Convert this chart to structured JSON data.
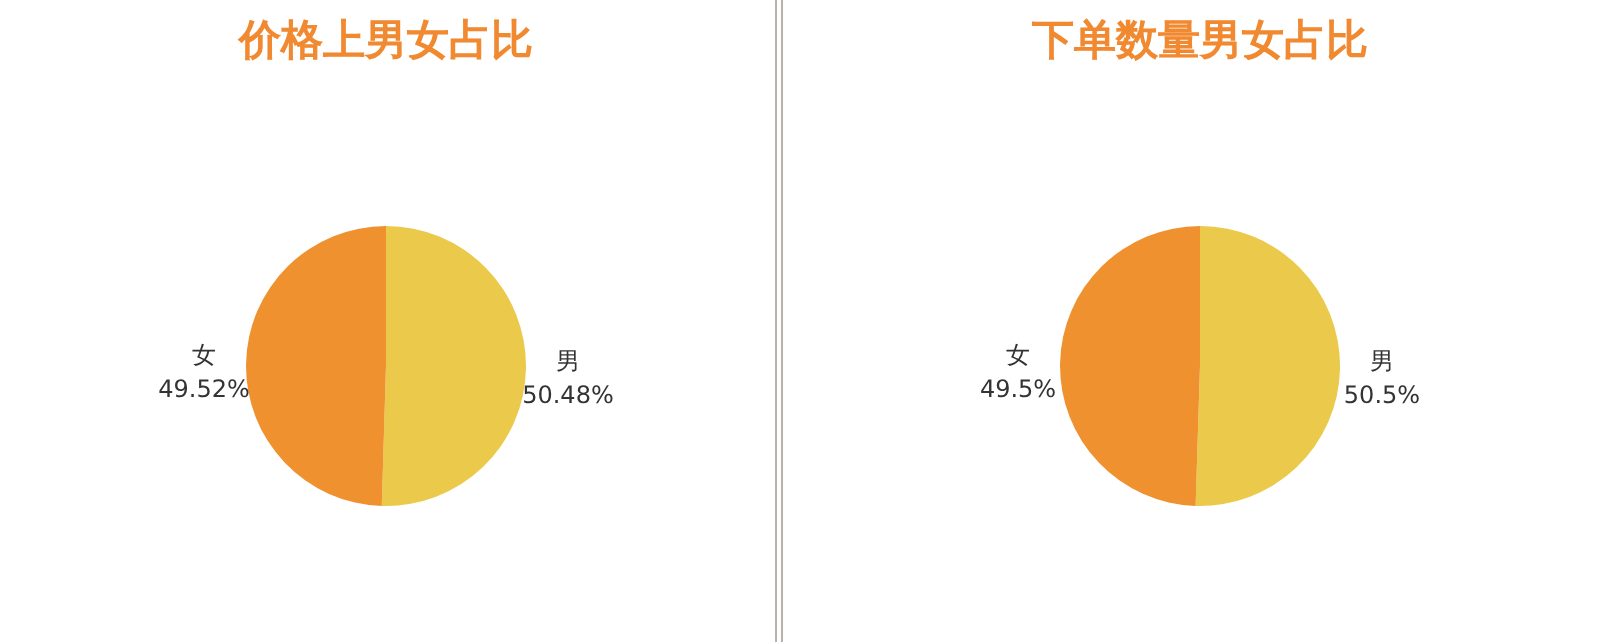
{
  "chart_data": [
    {
      "type": "pie",
      "title": "价格上男女占比",
      "categories": [
        "男",
        "女"
      ],
      "values": [
        50.48,
        49.52
      ],
      "colors": [
        "#ebc94b",
        "#f0912f"
      ],
      "value_labels": [
        "50.48%",
        "49.52%"
      ]
    },
    {
      "type": "pie",
      "title": "下单数量男女占比",
      "categories": [
        "男",
        "女"
      ],
      "values": [
        50.5,
        49.5
      ],
      "colors": [
        "#ebc94b",
        "#f0912f"
      ],
      "value_labels": [
        "50.5%",
        "49.5%"
      ]
    }
  ]
}
